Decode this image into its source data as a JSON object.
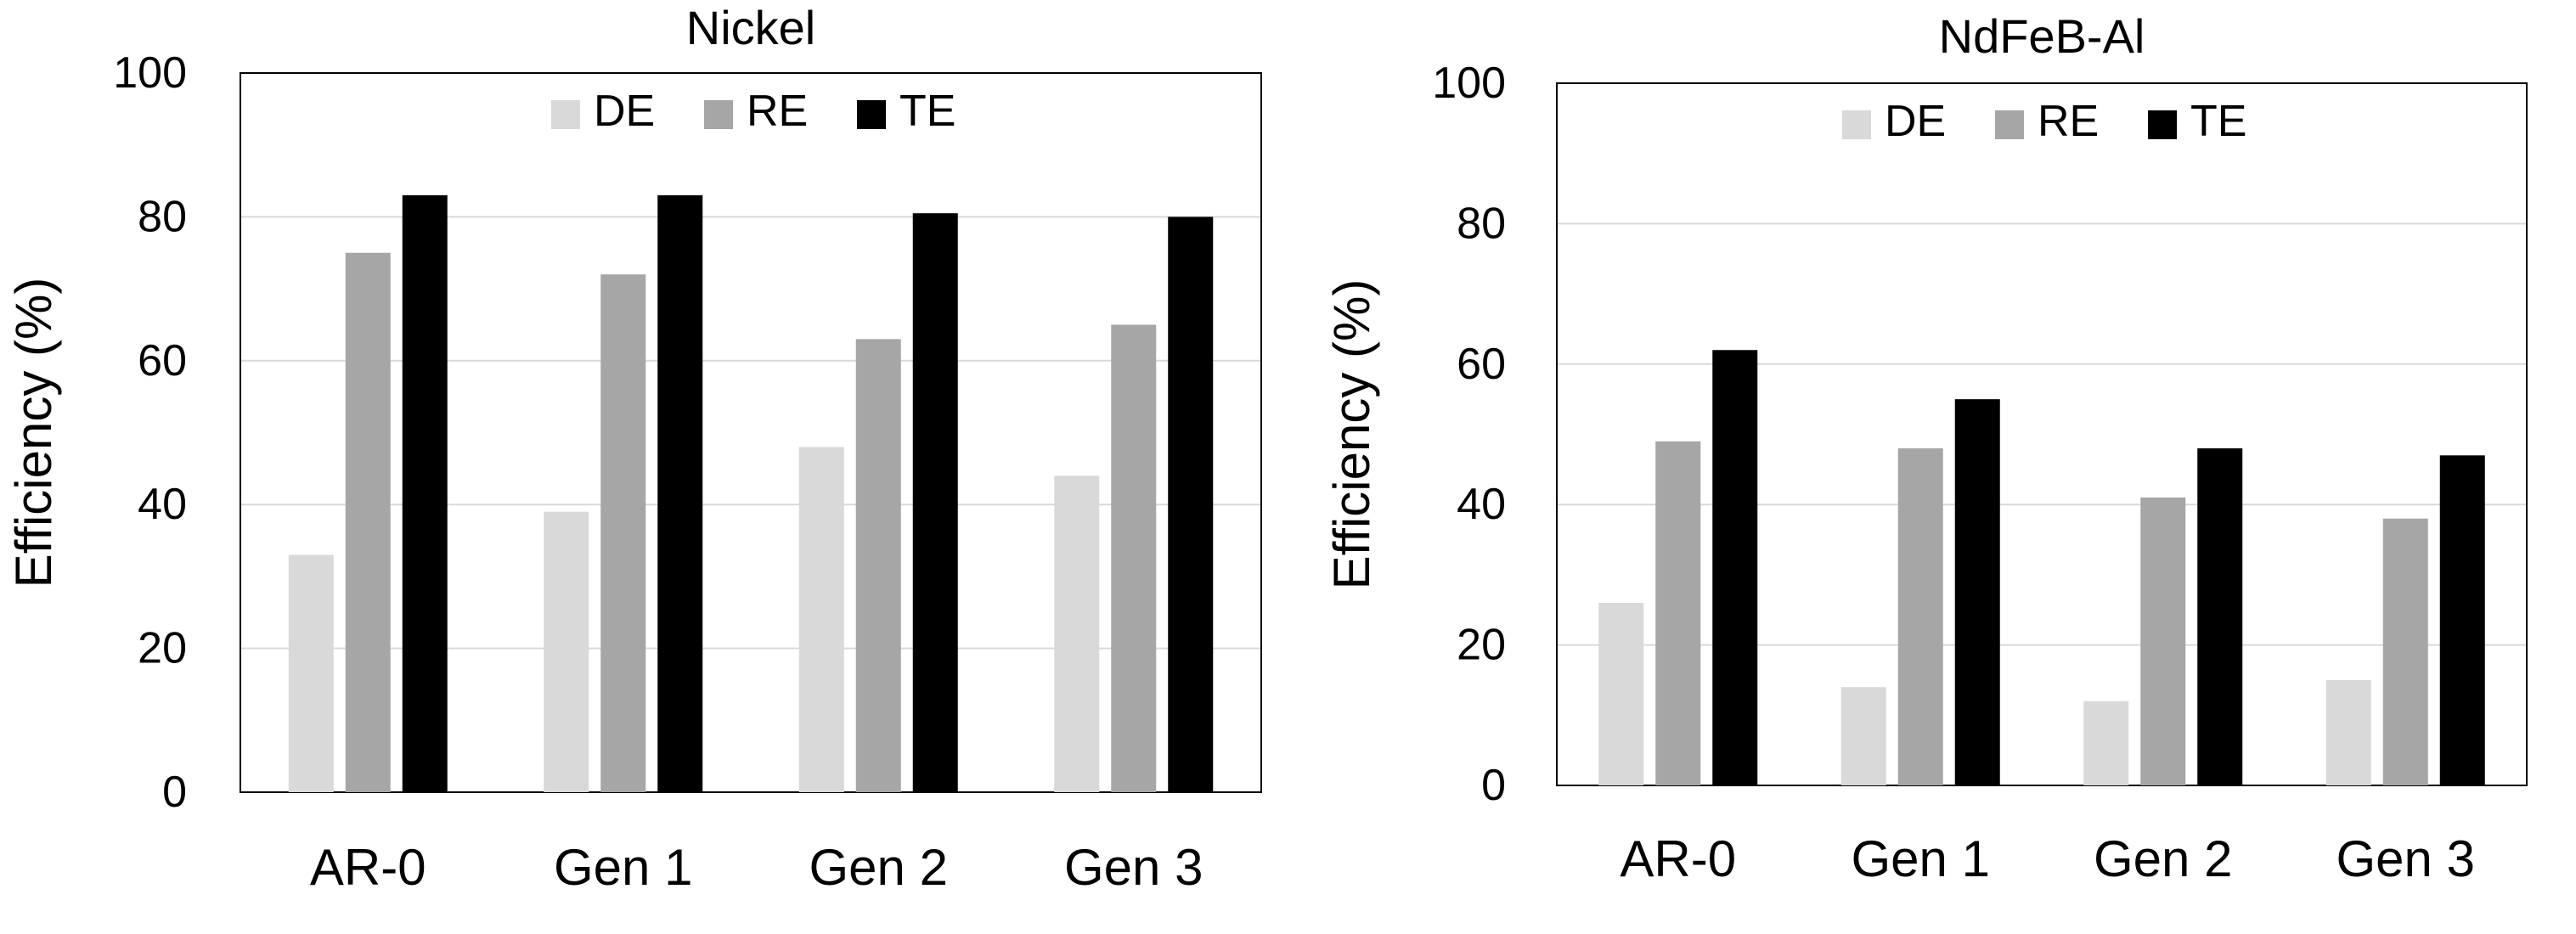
{
  "chart_data": [
    {
      "type": "bar",
      "title": "Nickel",
      "ylabel": "Efficiency (%)",
      "xlabel": "",
      "ylim": [
        0,
        100
      ],
      "yticks": [
        0,
        20,
        40,
        60,
        80,
        100
      ],
      "grid": true,
      "legend": "top-center",
      "categories": [
        "AR-0",
        "Gen 1",
        "Gen 2",
        "Gen 3"
      ],
      "series": [
        {
          "name": "DE",
          "color": "#d9d9d9",
          "values": [
            33,
            39,
            48,
            44
          ]
        },
        {
          "name": "RE",
          "color": "#a6a6a6",
          "values": [
            75,
            72,
            63,
            65
          ]
        },
        {
          "name": "TE",
          "color": "#000000",
          "values": [
            83,
            83,
            80.5,
            80
          ]
        }
      ]
    },
    {
      "type": "bar",
      "title": "NdFeB-Al",
      "ylabel": "Efficiency (%)",
      "xlabel": "",
      "ylim": [
        0,
        100
      ],
      "yticks": [
        0,
        20,
        40,
        60,
        80,
        100
      ],
      "grid": true,
      "legend": "top-center",
      "categories": [
        "AR-0",
        "Gen 1",
        "Gen 2",
        "Gen 3"
      ],
      "series": [
        {
          "name": "DE",
          "color": "#d9d9d9",
          "values": [
            26,
            14,
            12,
            15
          ]
        },
        {
          "name": "RE",
          "color": "#a6a6a6",
          "values": [
            49,
            48,
            41,
            38
          ]
        },
        {
          "name": "TE",
          "color": "#000000",
          "values": [
            62,
            55,
            48,
            47
          ]
        }
      ]
    }
  ]
}
